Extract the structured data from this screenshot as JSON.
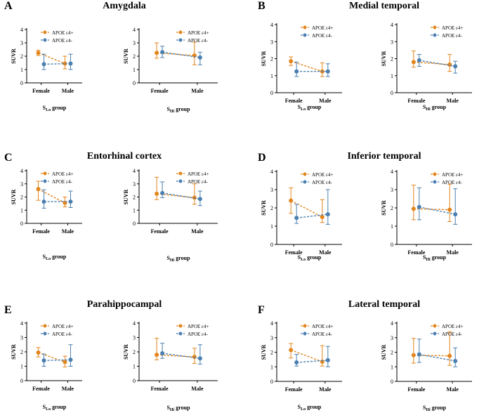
{
  "colors": {
    "apoe4_pos": "#E2851C",
    "apoe4_neg": "#4A7FB0",
    "axis": "#000000"
  },
  "common": {
    "y_label": "SUVR",
    "x_categories": [
      "Female",
      "Male"
    ],
    "series_names": [
      "APOE ε4+",
      "APOE ε4-"
    ],
    "y_ticks": [
      "0",
      "1",
      "2",
      "3",
      "4"
    ],
    "x_label_lo": {
      "main": "S",
      "sub": "Lo",
      "suffix": " group"
    },
    "x_label_hi": {
      "main": "S",
      "sub": "Hi",
      "suffix": " group"
    }
  },
  "chart_data": [
    {
      "panel": "A",
      "title": "Amygdala",
      "type": "line",
      "ylim": [
        0,
        4
      ],
      "subplots": [
        {
          "group": "SLo",
          "xlabel": "SLo group",
          "categories": [
            "Female",
            "Male"
          ],
          "series": [
            {
              "name": "APOE ε4+",
              "values": [
                2.25,
                1.45
              ],
              "err_low": [
                2.05,
                1.05
              ],
              "err_high": [
                2.45,
                2.0
              ]
            },
            {
              "name": "APOE ε4-",
              "values": [
                1.4,
                1.45
              ],
              "err_low": [
                1.0,
                1.0
              ],
              "err_high": [
                2.15,
                2.15
              ]
            }
          ]
        },
        {
          "group": "SHi",
          "xlabel": "SHi group",
          "categories": [
            "Female",
            "Male"
          ],
          "series": [
            {
              "name": "APOE ε4+",
              "values": [
                2.25,
                2.05
              ],
              "err_low": [
                1.85,
                1.35
              ],
              "err_high": [
                3.0,
                3.05
              ]
            },
            {
              "name": "APOE ε4-",
              "values": [
                2.3,
                1.9
              ],
              "err_low": [
                1.9,
                1.35
              ],
              "err_high": [
                2.75,
                2.3
              ]
            }
          ]
        }
      ]
    },
    {
      "panel": "B",
      "title": "Medial temporal",
      "type": "line",
      "ylim": [
        0,
        4
      ],
      "subplots": [
        {
          "group": "SLo",
          "xlabel": "SLo group",
          "categories": [
            "Female",
            "Male"
          ],
          "series": [
            {
              "name": "APOE ε4+",
              "values": [
                1.85,
                1.25
              ],
              "err_low": [
                1.6,
                0.95
              ],
              "err_high": [
                2.1,
                1.75
              ]
            },
            {
              "name": "APOE ε4-",
              "values": [
                1.25,
                1.25
              ],
              "err_low": [
                0.95,
                0.95
              ],
              "err_high": [
                1.8,
                1.7
              ]
            }
          ]
        },
        {
          "group": "SHi",
          "xlabel": "SHi group",
          "categories": [
            "Female",
            "Male"
          ],
          "series": [
            {
              "name": "APOE ε4+",
              "values": [
                1.8,
                1.65
              ],
              "err_low": [
                1.5,
                1.25
              ],
              "err_high": [
                2.45,
                2.25
              ]
            },
            {
              "name": "APOE ε4-",
              "values": [
                1.9,
                1.55
              ],
              "err_low": [
                1.55,
                1.15
              ],
              "err_high": [
                2.25,
                1.85
              ]
            }
          ]
        }
      ]
    },
    {
      "panel": "C",
      "title": "Entorhinal cortex",
      "type": "line",
      "ylim": [
        0,
        4
      ],
      "subplots": [
        {
          "group": "SLo",
          "xlabel": "SLo group",
          "categories": [
            "Female",
            "Male"
          ],
          "series": [
            {
              "name": "APOE ε4+",
              "values": [
                2.6,
                1.55
              ],
              "err_low": [
                1.75,
                1.25
              ],
              "err_high": [
                3.2,
                2.0
              ]
            },
            {
              "name": "APOE ε4-",
              "values": [
                1.65,
                1.65
              ],
              "err_low": [
                1.15,
                1.2
              ],
              "err_high": [
                2.55,
                2.45
              ]
            }
          ]
        },
        {
          "group": "SHi",
          "xlabel": "SHi group",
          "categories": [
            "Female",
            "Male"
          ],
          "series": [
            {
              "name": "APOE ε4+",
              "values": [
                2.25,
                1.95
              ],
              "err_low": [
                1.8,
                1.45
              ],
              "err_high": [
                3.5,
                3.0
              ]
            },
            {
              "name": "APOE ε4-",
              "values": [
                2.3,
                1.85
              ],
              "err_low": [
                1.95,
                1.35
              ],
              "err_high": [
                3.15,
                2.45
              ]
            }
          ]
        }
      ]
    },
    {
      "panel": "D",
      "title": "Inferior temporal",
      "type": "line",
      "ylim": [
        0,
        4
      ],
      "subplots": [
        {
          "group": "SLo",
          "xlabel": "SLo group",
          "categories": [
            "Female",
            "Male"
          ],
          "series": [
            {
              "name": "APOE ε4+",
              "values": [
                2.4,
                1.5
              ],
              "err_low": [
                1.7,
                1.2
              ],
              "err_high": [
                3.1,
                2.45
              ]
            },
            {
              "name": "APOE ε4-",
              "values": [
                1.45,
                1.65
              ],
              "err_low": [
                1.15,
                1.1
              ],
              "err_high": [
                2.2,
                3.0
              ]
            }
          ]
        },
        {
          "group": "SHi",
          "xlabel": "SHi group",
          "categories": [
            "Female",
            "Male"
          ],
          "series": [
            {
              "name": "APOE ε4+",
              "values": [
                1.95,
                1.9
              ],
              "err_low": [
                1.35,
                1.25
              ],
              "err_high": [
                3.25,
                3.3
              ]
            },
            {
              "name": "APOE ε4-",
              "values": [
                2.05,
                1.65
              ],
              "err_low": [
                1.35,
                1.1
              ],
              "err_high": [
                3.1,
                3.05
              ]
            }
          ]
        }
      ]
    },
    {
      "panel": "E",
      "title": "Parahippocampal",
      "type": "line",
      "ylim": [
        0,
        4
      ],
      "subplots": [
        {
          "group": "SLo",
          "xlabel": "SLo group",
          "categories": [
            "Female",
            "Male"
          ],
          "series": [
            {
              "name": "APOE ε4+",
              "values": [
                1.95,
                1.3
              ],
              "err_low": [
                1.65,
                0.95
              ],
              "err_high": [
                2.3,
                1.7
              ]
            },
            {
              "name": "APOE ε4-",
              "values": [
                1.4,
                1.45
              ],
              "err_low": [
                1.0,
                1.0
              ],
              "err_high": [
                1.85,
                2.5
              ]
            }
          ]
        },
        {
          "group": "SHi",
          "xlabel": "SHi group",
          "categories": [
            "Female",
            "Male"
          ],
          "series": [
            {
              "name": "APOE ε4+",
              "values": [
                1.8,
                1.65
              ],
              "err_low": [
                1.45,
                1.2
              ],
              "err_high": [
                2.95,
                2.25
              ]
            },
            {
              "name": "APOE ε4-",
              "values": [
                1.9,
                1.55
              ],
              "err_low": [
                1.55,
                1.15
              ],
              "err_high": [
                2.6,
                2.5
              ]
            }
          ]
        }
      ]
    },
    {
      "panel": "F",
      "title": "Lateral temporal",
      "type": "line",
      "ylim": [
        0,
        4
      ],
      "subplots": [
        {
          "group": "SLo",
          "xlabel": "SLo group",
          "categories": [
            "Female",
            "Male"
          ],
          "series": [
            {
              "name": "APOE ε4+",
              "values": [
                2.15,
                1.35
              ],
              "err_low": [
                1.6,
                1.05
              ],
              "err_high": [
                2.6,
                2.45
              ]
            },
            {
              "name": "APOE ε4-",
              "values": [
                1.3,
                1.45
              ],
              "err_low": [
                1.05,
                1.0
              ],
              "err_high": [
                1.85,
                2.4
              ]
            }
          ]
        },
        {
          "group": "SHi",
          "xlabel": "SHi group",
          "categories": [
            "Female",
            "Male"
          ],
          "series": [
            {
              "name": "APOE ε4+",
              "values": [
                1.8,
                1.75
              ],
              "err_low": [
                1.25,
                1.1
              ],
              "err_high": [
                2.95,
                3.4
              ]
            },
            {
              "name": "APOE ε4-",
              "values": [
                1.85,
                1.4
              ],
              "err_low": [
                1.3,
                1.0
              ],
              "err_high": [
                2.9,
                2.3
              ]
            }
          ]
        }
      ]
    }
  ]
}
